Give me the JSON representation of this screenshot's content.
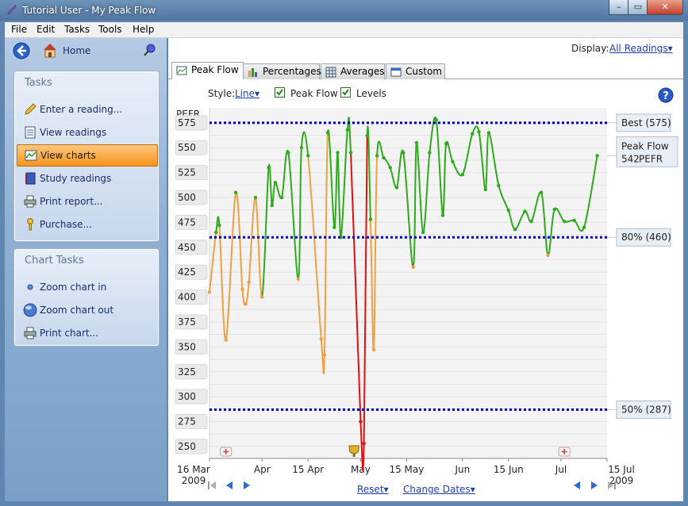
{
  "window": {
    "title": "Tutorial User - My Peak Flow",
    "controls": [
      "–",
      "▭",
      "✕"
    ]
  },
  "menu": [
    "File",
    "Edit",
    "Tasks",
    "Tools",
    "Help"
  ],
  "nav": {
    "home_label": "Home"
  },
  "tasks_panel": {
    "title": "Tasks",
    "items": [
      {
        "label": "Enter a reading...",
        "icon": "pencil-icon"
      },
      {
        "label": "View readings",
        "icon": "list-icon"
      },
      {
        "label": "View charts",
        "icon": "chart-icon",
        "selected": true
      },
      {
        "label": "Study readings",
        "icon": "book-icon"
      },
      {
        "label": "Print report...",
        "icon": "printer-icon"
      },
      {
        "label": "Purchase...",
        "icon": "key-icon"
      }
    ]
  },
  "chart_tasks_panel": {
    "title": "Chart Tasks",
    "items": [
      {
        "label": "Zoom chart in",
        "icon": "zoom-in-icon"
      },
      {
        "label": "Zoom chart out",
        "icon": "zoom-out-icon"
      },
      {
        "label": "Print chart...",
        "icon": "printer-icon"
      }
    ]
  },
  "display": {
    "label": "Display:",
    "value": "All Readings"
  },
  "tabs": [
    {
      "label": "Peak Flow",
      "active": true
    },
    {
      "label": "Percentages"
    },
    {
      "label": "Averages"
    },
    {
      "label": "Custom"
    }
  ],
  "options": {
    "style_label": "Style:",
    "style_value": "Line",
    "peakflow_label": "Peak Flow",
    "levels_label": "Levels"
  },
  "footer": {
    "reset": "Reset",
    "change_dates": "Change Dates"
  },
  "chart_data": {
    "type": "line",
    "ylabel": "PEFR",
    "yticks": [
      575,
      550,
      525,
      500,
      475,
      450,
      425,
      400,
      375,
      350,
      325,
      300,
      275,
      250
    ],
    "ylim": [
      238,
      590
    ],
    "xlim": [
      "2009-03-16",
      "2009-07-15"
    ],
    "xticks": [
      {
        "date": "2009-03-16",
        "lines": [
          "16 Mar",
          "2009"
        ]
      },
      {
        "date": "2009-04-01",
        "lines": [
          "Apr",
          ""
        ]
      },
      {
        "date": "2009-04-15",
        "lines": [
          "15 Apr",
          ""
        ]
      },
      {
        "date": "2009-05-01",
        "lines": [
          "May",
          ""
        ]
      },
      {
        "date": "2009-05-15",
        "lines": [
          "15 May",
          ""
        ]
      },
      {
        "date": "2009-06-01",
        "lines": [
          "Jun",
          ""
        ]
      },
      {
        "date": "2009-06-15",
        "lines": [
          "15 Jun",
          ""
        ]
      },
      {
        "date": "2009-07-01",
        "lines": [
          "Jul",
          ""
        ]
      },
      {
        "date": "2009-07-15",
        "lines": [
          "15 Jul",
          "2009"
        ]
      }
    ],
    "levels": [
      {
        "value": 575,
        "label": "Best (575)"
      },
      {
        "value": 460,
        "label": "80% (460)"
      },
      {
        "value": 287,
        "label": "50% (287)"
      }
    ],
    "current": {
      "label": "Peak Flow",
      "value": "542",
      "unit": "PEFR"
    },
    "colors": {
      "green": "#2eaa1c",
      "orange": "#f0a040",
      "red": "#e01010",
      "level": "#0000aa"
    },
    "markers": [
      {
        "date": "2009-03-21",
        "icon": "medical-kit-icon"
      },
      {
        "date": "2009-04-29",
        "icon": "trophy-icon"
      },
      {
        "date": "2009-07-02",
        "icon": "medical-kit-icon"
      }
    ],
    "points": [
      {
        "date": "2009-03-16",
        "y": 405
      },
      {
        "date": "2009-03-18",
        "y": 465
      },
      {
        "date": "2009-03-19",
        "y": 472
      },
      {
        "date": "2009-03-21",
        "y": 357
      },
      {
        "date": "2009-03-24",
        "y": 505
      },
      {
        "date": "2009-03-26",
        "y": 408
      },
      {
        "date": "2009-03-27",
        "y": 393
      },
      {
        "date": "2009-03-28",
        "y": 415
      },
      {
        "date": "2009-03-30",
        "y": 500
      },
      {
        "date": "2009-04-01",
        "y": 400
      },
      {
        "date": "2009-04-03",
        "y": 530
      },
      {
        "date": "2009-04-04",
        "y": 492
      },
      {
        "date": "2009-04-05",
        "y": 515
      },
      {
        "date": "2009-04-07",
        "y": 500
      },
      {
        "date": "2009-04-09",
        "y": 545
      },
      {
        "date": "2009-04-12",
        "y": 418
      },
      {
        "date": "2009-04-13",
        "y": 550
      },
      {
        "date": "2009-04-15",
        "y": 542
      },
      {
        "date": "2009-04-19",
        "y": 358
      },
      {
        "date": "2009-04-20",
        "y": 342
      },
      {
        "date": "2009-04-21",
        "y": 565
      },
      {
        "date": "2009-04-23",
        "y": 470
      },
      {
        "date": "2009-04-24",
        "y": 545
      },
      {
        "date": "2009-04-25",
        "y": 460
      },
      {
        "date": "2009-04-27",
        "y": 568
      },
      {
        "date": "2009-04-28",
        "y": 545
      },
      {
        "date": "2009-05-01",
        "y": 275
      },
      {
        "date": "2009-05-02",
        "y": 253
      },
      {
        "date": "2009-05-03",
        "y": 562
      },
      {
        "date": "2009-05-04",
        "y": 478
      },
      {
        "date": "2009-05-05",
        "y": 347
      },
      {
        "date": "2009-05-06",
        "y": 542
      },
      {
        "date": "2009-05-08",
        "y": 540
      },
      {
        "date": "2009-05-10",
        "y": 530
      },
      {
        "date": "2009-05-12",
        "y": 510
      },
      {
        "date": "2009-05-14",
        "y": 545
      },
      {
        "date": "2009-05-17",
        "y": 430
      },
      {
        "date": "2009-05-18",
        "y": 555
      },
      {
        "date": "2009-05-20",
        "y": 465
      },
      {
        "date": "2009-05-22",
        "y": 545
      },
      {
        "date": "2009-05-24",
        "y": 578
      },
      {
        "date": "2009-05-26",
        "y": 482
      },
      {
        "date": "2009-05-27",
        "y": 554
      },
      {
        "date": "2009-05-29",
        "y": 536
      },
      {
        "date": "2009-06-01",
        "y": 523
      },
      {
        "date": "2009-06-04",
        "y": 564
      },
      {
        "date": "2009-06-06",
        "y": 566
      },
      {
        "date": "2009-06-08",
        "y": 508
      },
      {
        "date": "2009-06-09",
        "y": 565
      },
      {
        "date": "2009-06-12",
        "y": 512
      },
      {
        "date": "2009-06-15",
        "y": 487
      },
      {
        "date": "2009-06-17",
        "y": 468
      },
      {
        "date": "2009-06-20",
        "y": 486
      },
      {
        "date": "2009-06-22",
        "y": 476
      },
      {
        "date": "2009-06-25",
        "y": 505
      },
      {
        "date": "2009-06-27",
        "y": 442
      },
      {
        "date": "2009-06-29",
        "y": 488
      },
      {
        "date": "2009-07-02",
        "y": 476
      },
      {
        "date": "2009-07-05",
        "y": 477
      },
      {
        "date": "2009-07-08",
        "y": 470
      },
      {
        "date": "2009-07-12",
        "y": 542
      }
    ]
  }
}
